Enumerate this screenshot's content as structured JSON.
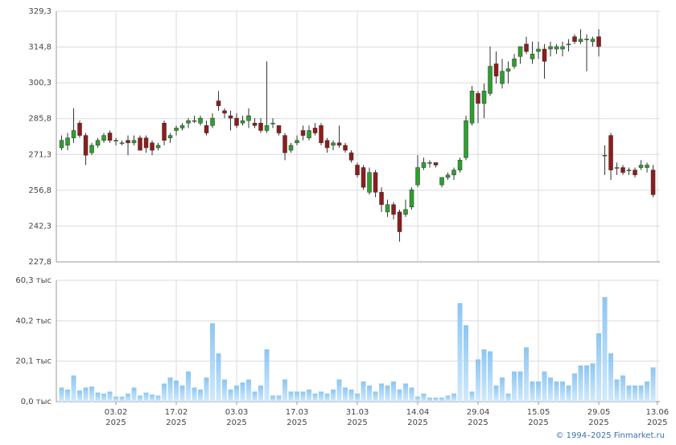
{
  "chart_data": [
    {
      "type": "candlestick",
      "open": [
        274,
        275,
        278,
        284,
        279,
        272,
        275,
        277,
        280,
        277,
        276,
        277,
        276,
        278,
        278,
        276,
        274,
        284,
        278,
        281,
        282,
        284,
        285,
        284,
        283,
        283,
        293,
        289,
        287,
        286,
        284,
        285,
        284,
        284,
        281,
        284,
        283,
        279,
        273,
        276,
        281,
        278,
        282,
        283,
        277,
        275,
        276,
        275,
        272,
        267,
        266,
        256,
        264,
        256,
        248,
        251,
        248,
        247,
        250,
        259,
        266,
        268,
        268,
        259,
        262,
        263,
        265,
        270,
        284,
        296,
        292,
        296,
        308,
        300,
        305,
        307,
        311,
        316,
        310,
        313,
        314,
        314,
        314,
        314,
        316,
        319,
        317,
        318,
        317,
        319,
        271,
        279,
        266,
        266,
        265,
        265,
        266,
        266,
        265
      ],
      "high": [
        279,
        280,
        290,
        285,
        280,
        276,
        278,
        280,
        281,
        278,
        277,
        279,
        279,
        279,
        279,
        277,
        276,
        285,
        280,
        283,
        284,
        286,
        287,
        287,
        285,
        288,
        297,
        290,
        289,
        288,
        287,
        290,
        286,
        286,
        309,
        286,
        283,
        280,
        276,
        279,
        283,
        283,
        284,
        284,
        278,
        277,
        283,
        276,
        273,
        268,
        267,
        266,
        265,
        258,
        253,
        252,
        249,
        253,
        258,
        271,
        270,
        269,
        268,
        262,
        264,
        266,
        270,
        287,
        299,
        297,
        300,
        315,
        313,
        310,
        309,
        312,
        315,
        319,
        317,
        317,
        316,
        317,
        316,
        317,
        318,
        320,
        322,
        320,
        319,
        322,
        275,
        280,
        268,
        267,
        266,
        266,
        269,
        268,
        267
      ],
      "low": [
        273,
        273,
        276,
        278,
        267,
        271,
        274,
        276,
        276,
        275,
        275,
        271,
        275,
        274,
        272,
        271,
        273,
        275,
        276,
        279,
        281,
        282,
        284,
        283,
        279,
        282,
        289,
        286,
        281,
        282,
        283,
        282,
        282,
        280,
        280,
        282,
        279,
        269,
        272,
        275,
        277,
        277,
        279,
        275,
        272,
        273,
        274,
        272,
        268,
        262,
        257,
        255,
        254,
        248,
        246,
        245,
        236,
        246,
        249,
        258,
        265,
        266,
        266,
        258,
        261,
        261,
        264,
        269,
        283,
        284,
        286,
        295,
        300,
        298,
        300,
        306,
        308,
        312,
        308,
        310,
        302,
        311,
        312,
        311,
        313,
        316,
        316,
        305,
        315,
        311,
        263,
        261,
        263,
        263,
        263,
        262,
        265,
        264,
        254
      ],
      "close": [
        277,
        278,
        281,
        279,
        271,
        275,
        277,
        279,
        277,
        277,
        276,
        276,
        277,
        273,
        274,
        273,
        275,
        277,
        279,
        282,
        283,
        285,
        285,
        286,
        280,
        286,
        291,
        288,
        286,
        283,
        285,
        287,
        283,
        281,
        283,
        284,
        280,
        272,
        275,
        277,
        279,
        281,
        280,
        276,
        274,
        276,
        275,
        273,
        269,
        263,
        258,
        264,
        256,
        251,
        251,
        247,
        240,
        249,
        257,
        266,
        268,
        268,
        267,
        262,
        263,
        265,
        269,
        285,
        297,
        292,
        297,
        307,
        303,
        305,
        306,
        310,
        315,
        313,
        312,
        314,
        309,
        315,
        315,
        315,
        316,
        317,
        318,
        318,
        318,
        315,
        271,
        265,
        266,
        264,
        265,
        263,
        267,
        267,
        255
      ],
      "up_color": "#2f9e2f",
      "down_color": "#8e1c1c",
      "wick_color": "#333333",
      "xlim": [
        -0.87,
        99.13
      ],
      "ylim": [
        227.8,
        329.3
      ],
      "yticks": [
        {
          "value": 227.8,
          "label": "227,8"
        },
        {
          "value": 242.3,
          "label": "242,3"
        },
        {
          "value": 256.8,
          "label": "256,8"
        },
        {
          "value": 271.3,
          "label": "271,3"
        },
        {
          "value": 285.8,
          "label": "285,8"
        },
        {
          "value": 300.3,
          "label": "300,3"
        },
        {
          "value": 314.8,
          "label": "314,8"
        },
        {
          "value": 329.3,
          "label": "329,3"
        }
      ],
      "grid": true
    },
    {
      "type": "bar",
      "values": [
        7,
        6,
        13,
        5.5,
        7,
        7.5,
        4.5,
        4,
        5,
        2.5,
        2.5,
        4,
        7,
        3,
        4.5,
        3.5,
        3,
        9,
        12,
        10.5,
        8,
        15,
        7,
        6,
        12,
        39,
        24,
        11,
        6,
        8,
        9.5,
        11,
        5,
        8,
        26,
        3,
        3,
        11,
        5,
        5,
        5,
        6,
        4,
        5,
        4,
        6,
        11,
        7,
        6,
        4,
        10,
        8,
        5,
        9,
        8,
        10,
        6,
        9,
        7,
        2.5,
        4,
        2,
        2,
        2,
        3,
        4,
        49,
        38,
        5,
        21,
        26,
        25,
        8,
        12,
        4,
        15,
        15,
        27,
        10,
        10,
        15,
        12,
        10,
        10,
        8,
        14,
        18,
        18,
        19,
        34,
        52,
        24,
        11,
        13,
        8,
        8,
        8,
        10,
        17
      ],
      "color": "#a6d4f7",
      "xlim": [
        -0.87,
        99.13
      ],
      "xticks": [
        {
          "value": 9,
          "label": "03.02"
        },
        {
          "value": 19,
          "label": "17.02"
        },
        {
          "value": 29,
          "label": "03.03"
        },
        {
          "value": 39,
          "label": "17.03"
        },
        {
          "value": 49,
          "label": "31.03"
        },
        {
          "value": 59,
          "label": "14.04"
        },
        {
          "value": 69,
          "label": "29.04"
        },
        {
          "value": 79,
          "label": "15.05"
        },
        {
          "value": 89,
          "label": "29.05"
        },
        {
          "value": 98.7,
          "label": "13.06"
        }
      ],
      "xtick_sublabels": [
        "2025",
        "2025",
        "2025",
        "2025",
        "2025",
        "2025",
        "2025",
        "2025",
        "2025",
        "2025"
      ],
      "ylim": [
        0,
        60.3
      ],
      "yticks": [
        {
          "value": 0,
          "label": "0,0 тыс"
        },
        {
          "value": 20.1,
          "label": "20,1 тыс"
        },
        {
          "value": 40.2,
          "label": "40,2 тыс"
        },
        {
          "value": 60.3,
          "label": "60,3 тыс"
        }
      ],
      "grid": true
    }
  ],
  "footer": "© 1994–2025 Finmarket.ru"
}
